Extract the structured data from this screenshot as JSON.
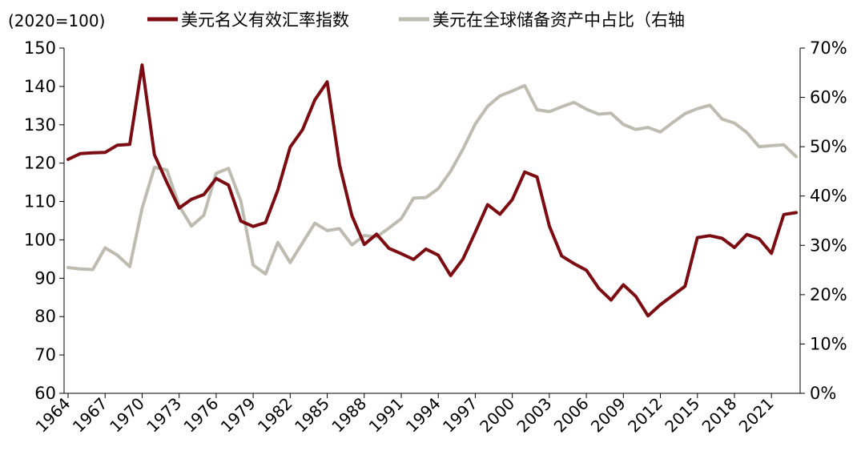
{
  "chart_data": {
    "type": "line",
    "unit_label": "(2020=100)",
    "x": [
      1964,
      1965,
      1966,
      1967,
      1968,
      1969,
      1970,
      1971,
      1972,
      1973,
      1974,
      1975,
      1976,
      1977,
      1978,
      1979,
      1980,
      1981,
      1982,
      1983,
      1984,
      1985,
      1986,
      1987,
      1988,
      1989,
      1990,
      1991,
      1992,
      1993,
      1994,
      1995,
      1996,
      1997,
      1998,
      1999,
      2000,
      2001,
      2002,
      2003,
      2004,
      2005,
      2006,
      2007,
      2008,
      2009,
      2010,
      2011,
      2012,
      2013,
      2014,
      2015,
      2016,
      2017,
      2018,
      2019,
      2020,
      2021,
      2022,
      2023
    ],
    "x_tick_labels": [
      "1964",
      "1967",
      "1970",
      "1973",
      "1976",
      "1979",
      "1982",
      "1985",
      "1988",
      "1991",
      "1994",
      "1997",
      "2000",
      "2003",
      "2006",
      "2009",
      "2012",
      "2015",
      "2018",
      "2021"
    ],
    "xlim": [
      1964,
      2023
    ],
    "y_left": {
      "ylim": [
        60,
        150
      ],
      "ticks": [
        "60",
        "70",
        "80",
        "90",
        "100",
        "110",
        "120",
        "130",
        "140",
        "150"
      ]
    },
    "y_right": {
      "ylim": [
        0,
        70
      ],
      "ticks": [
        "0%",
        "10%",
        "20%",
        "30%",
        "40%",
        "50%",
        "60%",
        "70%"
      ]
    },
    "series": [
      {
        "name": "美元名义有效汇率指数",
        "axis": "left",
        "color": "#7b0c12",
        "values": [
          121.0,
          122.5,
          122.7,
          122.8,
          124.7,
          124.9,
          145.6,
          122.2,
          115.0,
          108.3,
          110.6,
          111.8,
          116.0,
          114.3,
          104.9,
          103.5,
          104.5,
          113.0,
          124.2,
          128.7,
          136.5,
          141.2,
          119.6,
          106.3,
          98.8,
          101.5,
          97.8,
          96.4,
          94.9,
          97.6,
          96.0,
          90.7,
          95.0,
          102.0,
          109.2,
          106.7,
          110.5,
          117.7,
          116.4,
          103.6,
          95.8,
          93.8,
          92.1,
          87.4,
          84.3,
          88.3,
          85.3,
          80.2,
          83.1,
          85.5,
          87.9,
          100.6,
          101.1,
          100.4,
          98.0,
          101.4,
          100.3,
          96.5,
          106.6,
          107.1
        ]
      },
      {
        "name": "美元在全球储备资产中占比（右轴",
        "axis": "right",
        "color": "#bdbcb1",
        "values": [
          25.5,
          25.2,
          25.1,
          29.5,
          28.0,
          25.7,
          37.5,
          45.8,
          45.3,
          38.0,
          33.9,
          36.1,
          44.6,
          45.6,
          39.0,
          26.0,
          24.2,
          30.6,
          26.5,
          30.5,
          34.5,
          33.0,
          33.4,
          30.1,
          32.0,
          31.7,
          33.5,
          35.4,
          39.6,
          39.7,
          41.5,
          45.0,
          49.5,
          54.6,
          58.2,
          60.3,
          61.3,
          62.4,
          57.5,
          57.1,
          58.1,
          59.0,
          57.6,
          56.6,
          56.8,
          54.5,
          53.5,
          53.9,
          53.0,
          54.9,
          56.7,
          57.7,
          58.4,
          55.6,
          54.8,
          52.9,
          50.0,
          50.2,
          50.4,
          48.0
        ]
      }
    ]
  }
}
